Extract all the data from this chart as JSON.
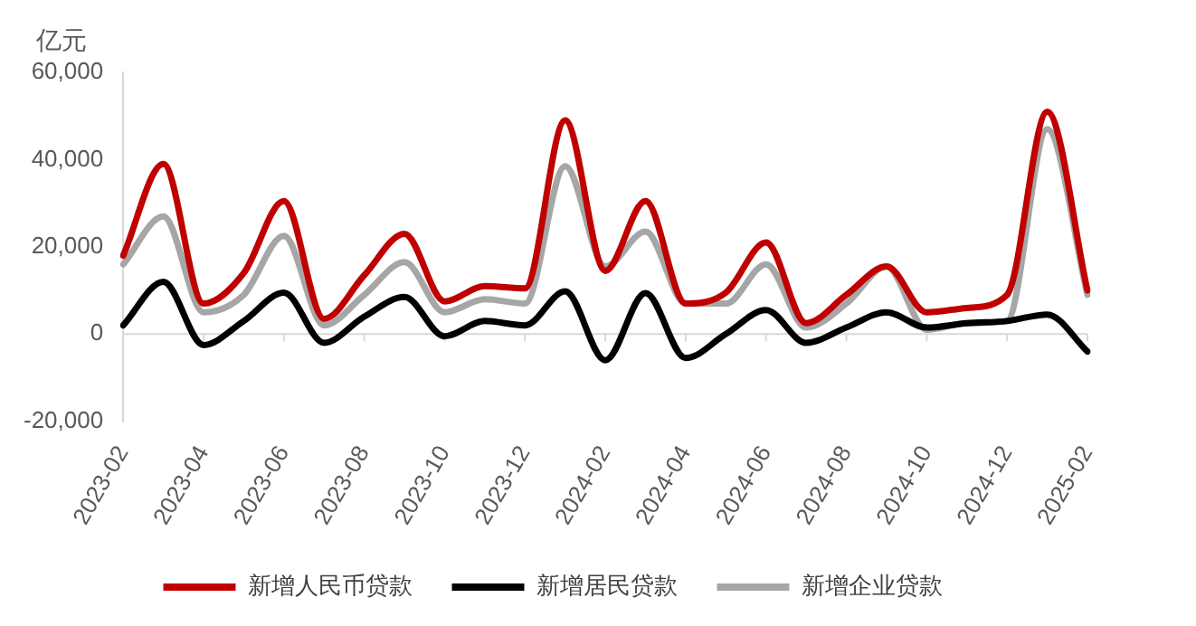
{
  "chart_data": {
    "type": "line",
    "ylabel": "亿元",
    "categories": [
      "2023-02",
      null,
      "2023-04",
      null,
      "2023-06",
      null,
      "2023-08",
      null,
      "2023-10",
      null,
      "2023-12",
      null,
      "2024-02",
      null,
      "2024-04",
      null,
      "2024-06",
      null,
      "2024-08",
      null,
      "2024-10",
      null,
      "2024-12",
      null,
      "2025-02"
    ],
    "series": [
      {
        "name": "新增人民币贷款",
        "color": "#c00000",
        "values": [
          18000,
          39000,
          7000,
          14000,
          30500,
          3500,
          13500,
          23000,
          7500,
          11000,
          10500,
          49000,
          14500,
          30500,
          7000,
          9500,
          21000,
          2500,
          9000,
          15500,
          5000,
          6000,
          9000,
          51000,
          10000
        ]
      },
      {
        "name": "新增居民贷款",
        "color": "#000000",
        "values": [
          2000,
          12000,
          -2500,
          3000,
          9500,
          -2000,
          4000,
          8500,
          -500,
          3000,
          2000,
          9800,
          -6000,
          9400,
          -5500,
          0,
          5500,
          -2000,
          1500,
          5000,
          1500,
          2500,
          3000,
          4500,
          -4000
        ]
      },
      {
        "name": "新增企业贷款",
        "color": "#a6a6a6",
        "values": [
          16000,
          27000,
          5000,
          9000,
          22500,
          2000,
          9000,
          16500,
          5000,
          8000,
          7000,
          38500,
          15500,
          23500,
          7000,
          7000,
          16000,
          1500,
          7000,
          15500,
          1000,
          2500,
          3000,
          47000,
          9000
        ]
      }
    ],
    "ylim": [
      -20000,
      60000
    ],
    "yticks": [
      {
        "value": -20000,
        "label": "-20,000"
      },
      0,
      {
        "value": 20000,
        "label": "20,000"
      },
      {
        "value": 40000,
        "label": "40,000"
      },
      {
        "value": 60000,
        "label": "60,000"
      }
    ],
    "ref_lines": [
      {
        "axis": "y",
        "value": 0,
        "color": "#d9d9d9"
      }
    ],
    "grid": false,
    "legend": "bottom",
    "marker": "none",
    "line_style": "solid"
  }
}
